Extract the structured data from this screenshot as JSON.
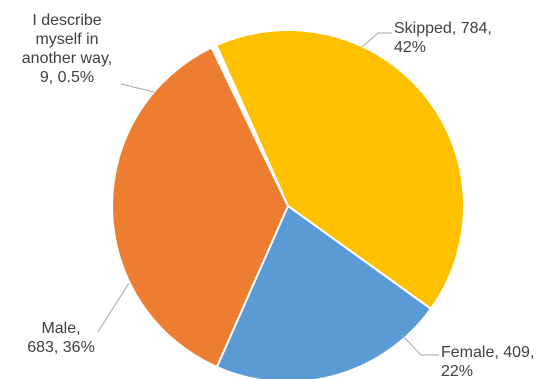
{
  "chart_data": {
    "type": "pie",
    "title": "",
    "start_angle_deg": -114,
    "direction": "clockwise",
    "legend": "none",
    "slices": [
      {
        "name": "Skipped",
        "value": 784,
        "percent": "42%",
        "color": "#FFC000",
        "label_lines": [
          "Skipped, 784,",
          "42%"
        ]
      },
      {
        "name": "Female",
        "value": 409,
        "percent": "22%",
        "color": "#5B9BD5",
        "label_lines": [
          "Female, 409,",
          "22%"
        ]
      },
      {
        "name": "Male",
        "value": 683,
        "percent": "36%",
        "color": "#ED7D31",
        "label_lines": [
          "Male,",
          "683, 36%"
        ]
      },
      {
        "name": "I describe myself in another way",
        "value": 9,
        "percent": "0.5%",
        "color": "#FFFFFF",
        "label_lines": [
          "I describe",
          "myself in",
          "another way,",
          "9, 0.5%"
        ]
      }
    ]
  }
}
